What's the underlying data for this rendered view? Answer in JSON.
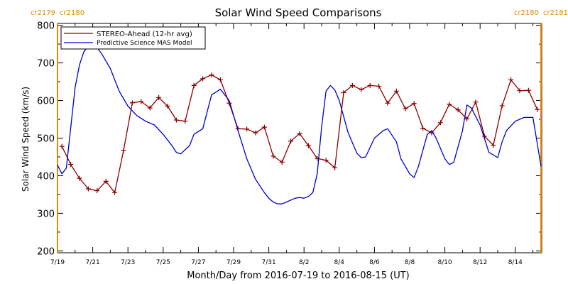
{
  "chart_data": {
    "type": "line",
    "title": "Solar Wind Speed Comparisons",
    "xlabel": "Month/Day from 2016-07-19 to 2016-08-15 (UT)",
    "ylabel": "Solar Wind Speed (km/s)",
    "xlim": [
      "2016-07-19",
      "2016-08-15T12:00"
    ],
    "ylim": [
      195,
      805
    ],
    "yticks": [
      200,
      300,
      400,
      500,
      600,
      700,
      800
    ],
    "xtick_labels": [
      "7/19",
      "7/21",
      "7/23",
      "7/25",
      "7/27",
      "7/29",
      "7/31",
      "8/2",
      "8/4",
      "8/6",
      "8/8",
      "8/10",
      "8/12",
      "8/14"
    ],
    "xtick_dates": [
      "2016-07-19",
      "2016-07-21",
      "2016-07-23",
      "2016-07-25",
      "2016-07-27",
      "2016-07-29",
      "2016-07-31",
      "2016-08-02",
      "2016-08-04",
      "2016-08-06",
      "2016-08-08",
      "2016-08-10",
      "2016-08-12",
      "2016-08-14"
    ],
    "legend_position": "top-left",
    "carrington_markers": [
      {
        "date": "2016-07-19",
        "left_label": "cr2179",
        "right_label": "cr2180",
        "color": "#E08A00"
      },
      {
        "date": "2016-08-15T11:00",
        "left_label": "cr2180",
        "right_label": "cr2181",
        "color": "#E08A00"
      }
    ],
    "series": [
      {
        "name": "STEREO-Ahead (12-hr avg)",
        "color": "#8B0000",
        "marker": "plus",
        "x": [
          "2016-07-19T06:00",
          "2016-07-19T18:00",
          "2016-07-20T06:00",
          "2016-07-20T18:00",
          "2016-07-21T06:00",
          "2016-07-21T18:00",
          "2016-07-22T06:00",
          "2016-07-22T18:00",
          "2016-07-23T06:00",
          "2016-07-23T18:00",
          "2016-07-24T06:00",
          "2016-07-24T18:00",
          "2016-07-25T06:00",
          "2016-07-25T18:00",
          "2016-07-26T06:00",
          "2016-07-26T18:00",
          "2016-07-27T06:00",
          "2016-07-27T18:00",
          "2016-07-28T06:00",
          "2016-07-28T18:00",
          "2016-07-29T06:00",
          "2016-07-29T18:00",
          "2016-07-30T06:00",
          "2016-07-30T18:00",
          "2016-07-31T06:00",
          "2016-07-31T18:00",
          "2016-08-01T06:00",
          "2016-08-01T18:00",
          "2016-08-02T06:00",
          "2016-08-02T18:00",
          "2016-08-03T06:00",
          "2016-08-03T18:00",
          "2016-08-04T06:00",
          "2016-08-04T18:00",
          "2016-08-05T06:00",
          "2016-08-05T18:00",
          "2016-08-06T06:00",
          "2016-08-06T18:00",
          "2016-08-07T06:00",
          "2016-08-07T18:00",
          "2016-08-08T06:00",
          "2016-08-08T18:00",
          "2016-08-09T06:00",
          "2016-08-09T18:00",
          "2016-08-10T06:00",
          "2016-08-10T18:00",
          "2016-08-11T06:00",
          "2016-08-11T18:00",
          "2016-08-12T06:00",
          "2016-08-12T18:00",
          "2016-08-13T06:00",
          "2016-08-13T18:00",
          "2016-08-14T06:00",
          "2016-08-14T18:00",
          "2016-08-15T06:00"
        ],
        "values": [
          478,
          430,
          393,
          365,
          360,
          385,
          355,
          467,
          594,
          597,
          580,
          608,
          585,
          548,
          545,
          640,
          658,
          668,
          655,
          593,
          525,
          524,
          514,
          529,
          452,
          436,
          492,
          512,
          480,
          446,
          441,
          421,
          621,
          640,
          629,
          640,
          638,
          593,
          625,
          578,
          592,
          526,
          514,
          541,
          590,
          575,
          551,
          596,
          505,
          481,
          586,
          655,
          626,
          627,
          576
        ]
      },
      {
        "name": "Predictive Science MAS Model",
        "color": "#0000CC",
        "marker": "none",
        "x": [
          "2016-07-19T00:00",
          "2016-07-19T06:00",
          "2016-07-19T12:00",
          "2016-07-20T00:00",
          "2016-07-20T06:00",
          "2016-07-20T12:00",
          "2016-07-20T18:00",
          "2016-07-21T00:00",
          "2016-07-21T06:00",
          "2016-07-21T12:00",
          "2016-07-22T00:00",
          "2016-07-22T12:00",
          "2016-07-23T00:00",
          "2016-07-23T12:00",
          "2016-07-24T00:00",
          "2016-07-24T12:00",
          "2016-07-25T00:00",
          "2016-07-25T12:00",
          "2016-07-25T18:00",
          "2016-07-26T00:00",
          "2016-07-26T12:00",
          "2016-07-26T18:00",
          "2016-07-27T06:00",
          "2016-07-27T12:00",
          "2016-07-27T18:00",
          "2016-07-28T06:00",
          "2016-07-28T18:00",
          "2016-07-29T06:00",
          "2016-07-29T18:00",
          "2016-07-30T06:00",
          "2016-07-30T18:00",
          "2016-07-31T00:00",
          "2016-07-31T06:00",
          "2016-07-31T12:00",
          "2016-07-31T18:00",
          "2016-08-01T00:00",
          "2016-08-01T12:00",
          "2016-08-01T18:00",
          "2016-08-02T00:00",
          "2016-08-02T06:00",
          "2016-08-02T12:00",
          "2016-08-02T18:00",
          "2016-08-03T00:00",
          "2016-08-03T06:00",
          "2016-08-03T12:00",
          "2016-08-03T18:00",
          "2016-08-04T00:00",
          "2016-08-04T12:00",
          "2016-08-05T00:00",
          "2016-08-05T06:00",
          "2016-08-05T12:00",
          "2016-08-06T00:00",
          "2016-08-06T12:00",
          "2016-08-06T18:00",
          "2016-08-07T06:00",
          "2016-08-07T12:00",
          "2016-08-08T00:00",
          "2016-08-08T06:00",
          "2016-08-08T12:00",
          "2016-08-09T00:00",
          "2016-08-09T06:00",
          "2016-08-09T12:00",
          "2016-08-10T00:00",
          "2016-08-10T06:00",
          "2016-08-10T12:00",
          "2016-08-11T00:00",
          "2016-08-11T06:00",
          "2016-08-11T12:00",
          "2016-08-12T00:00",
          "2016-08-12T12:00",
          "2016-08-13T00:00",
          "2016-08-13T06:00",
          "2016-08-13T12:00",
          "2016-08-14T00:00",
          "2016-08-14T12:00",
          "2016-08-15T00:00",
          "2016-08-15T11:00"
        ],
        "values": [
          428,
          405,
          420,
          635,
          695,
          730,
          745,
          745,
          740,
          725,
          685,
          625,
          585,
          560,
          545,
          535,
          510,
          480,
          462,
          458,
          480,
          510,
          525,
          570,
          615,
          630,
          600,
          520,
          445,
          390,
          355,
          340,
          330,
          325,
          325,
          330,
          340,
          342,
          340,
          345,
          355,
          405,
          530,
          625,
          640,
          628,
          600,
          515,
          460,
          448,
          450,
          500,
          520,
          525,
          490,
          445,
          405,
          395,
          425,
          510,
          520,
          500,
          445,
          430,
          435,
          520,
          588,
          580,
          535,
          462,
          448,
          490,
          520,
          545,
          555,
          555,
          425
        ]
      }
    ]
  }
}
